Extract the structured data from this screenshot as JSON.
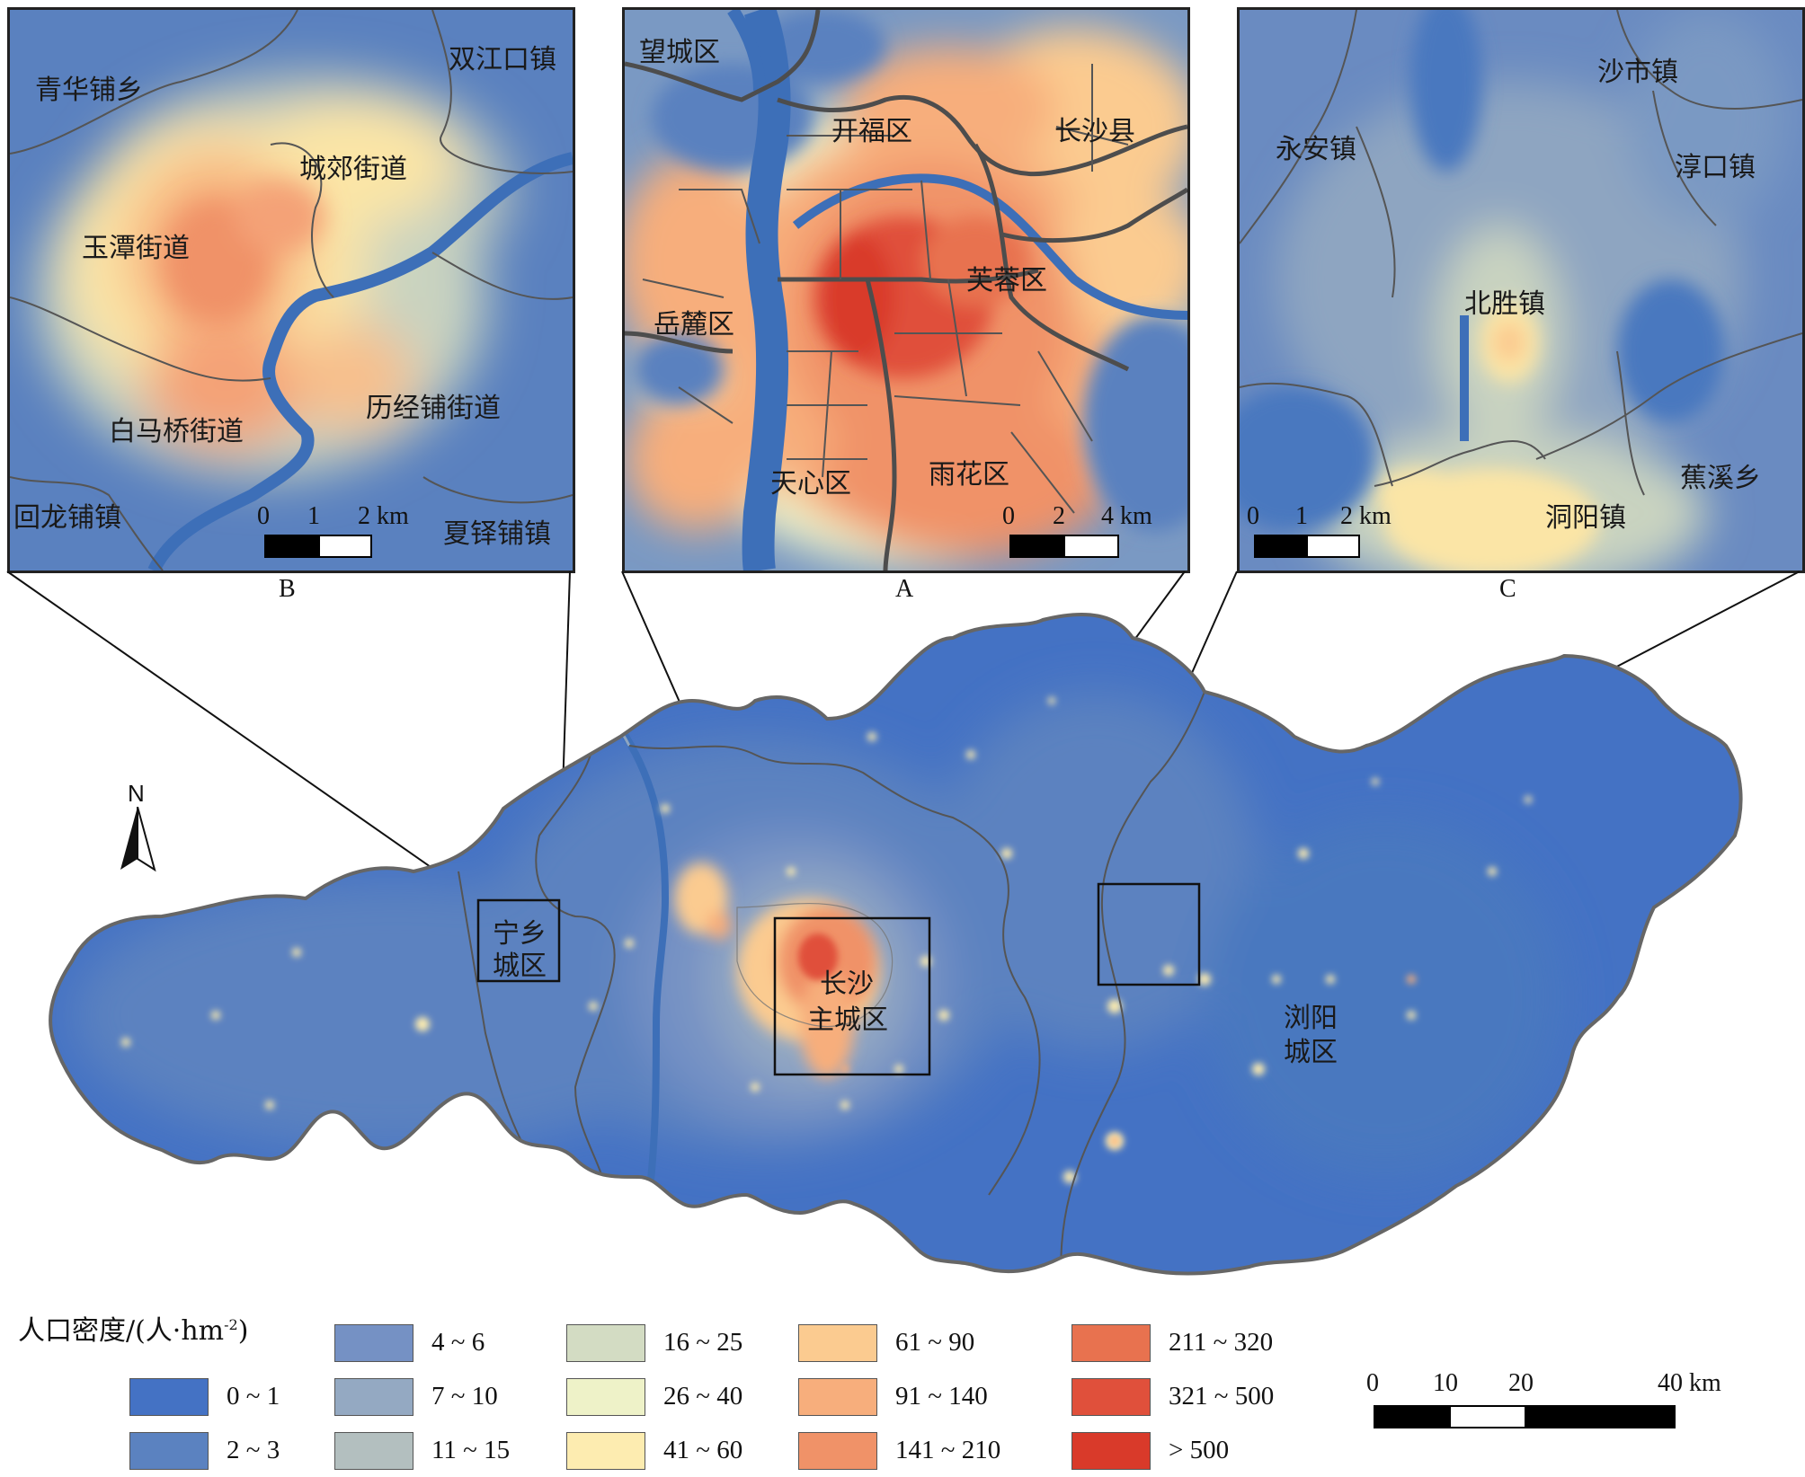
{
  "palette": {
    "bg_low": "#4a78bf",
    "water": "#3d6fb8",
    "boundary": "#555555",
    "high": "#d93a2a"
  },
  "inset_b": {
    "caption": "B",
    "labels": [
      "青华铺乡",
      "双江口镇",
      "城郊街道",
      "玉潭街道",
      "白马桥街道",
      "历经铺街道",
      "回龙铺镇",
      "夏铎铺镇"
    ],
    "scalebar": {
      "ticks": [
        "0",
        "1",
        "2 km"
      ]
    }
  },
  "inset_a": {
    "caption": "A",
    "labels": [
      "望城区",
      "开福区",
      "长沙县",
      "芙蓉区",
      "岳麓区",
      "天心区",
      "雨花区"
    ],
    "scalebar": {
      "ticks": [
        "0",
        "2",
        "4 km"
      ]
    }
  },
  "inset_c": {
    "caption": "C",
    "labels": [
      "沙市镇",
      "永安镇",
      "淳口镇",
      "北胜镇",
      "洞阳镇",
      "蕉溪乡"
    ],
    "scalebar": {
      "ticks": [
        "0",
        "1",
        "2 km"
      ]
    }
  },
  "main_map": {
    "labels": {
      "ningxiang_l1": "宁乡",
      "ningxiang_l2": "城区",
      "changsha_l1": "长沙",
      "changsha_l2": "主城区",
      "liuyang_l1": "浏阳",
      "liuyang_l2": "城区"
    },
    "north": "N"
  },
  "legend": {
    "title": "人口密度/(人·hm",
    "title_sup": "-2",
    "title_end": ")",
    "classes": [
      {
        "label": "0 ~ 1",
        "color": "#4472c4"
      },
      {
        "label": "2 ~ 3",
        "color": "#5b82c0"
      },
      {
        "label": "4 ~ 6",
        "color": "#7591c4"
      },
      {
        "label": "7 ~ 10",
        "color": "#94a9c2"
      },
      {
        "label": "11 ~ 15",
        "color": "#b3bfbf"
      },
      {
        "label": "16 ~ 25",
        "color": "#d3dcc3"
      },
      {
        "label": "26 ~ 40",
        "color": "#eef2c8"
      },
      {
        "label": "41 ~ 60",
        "color": "#fdecb0"
      },
      {
        "label": "61 ~ 90",
        "color": "#fbcb90"
      },
      {
        "label": "91 ~ 140",
        "color": "#f7ae7c"
      },
      {
        "label": "141 ~ 210",
        "color": "#f09268"
      },
      {
        "label": "211 ~ 320",
        "color": "#e8724f"
      },
      {
        "label": "321 ~ 500",
        "color": "#e0503b"
      },
      {
        "label": "> 500",
        "color": "#d93a2a"
      }
    ]
  },
  "main_scalebar": {
    "ticks": [
      "0",
      "10",
      "20",
      "40 km"
    ]
  }
}
